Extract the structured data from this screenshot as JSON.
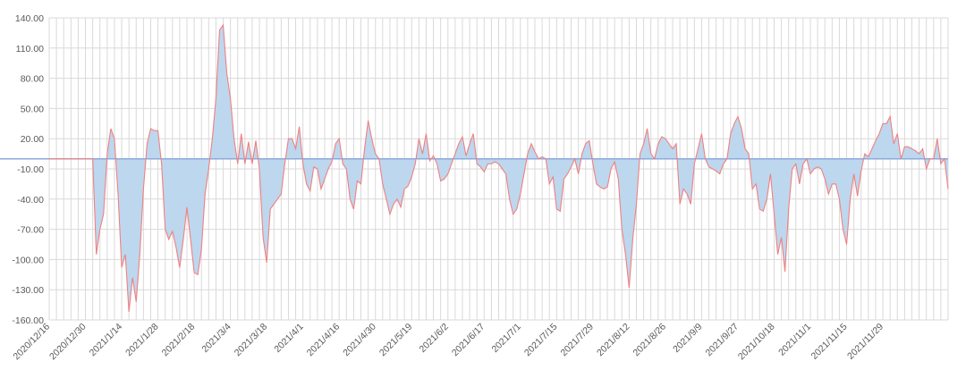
{
  "chart_data": {
    "type": "area",
    "title": "",
    "xlabel": "",
    "ylabel": "",
    "ylim": [
      -160,
      140
    ],
    "ytick_step": 30,
    "y_ticks": [
      "140.00",
      "110.00",
      "80.00",
      "50.00",
      "20.00",
      "-10.00",
      "-40.00",
      "-70.00",
      "-100.00",
      "-130.00",
      "-160.00"
    ],
    "baseline": 0,
    "x_labels": [
      "2020/12/16",
      "2020/12/30",
      "2021/1/14",
      "2021/1/28",
      "2021/2/18",
      "2021/3/4",
      "2021/3/18",
      "2021/4/1",
      "2021/4/16",
      "2021/4/30",
      "2021/5/19",
      "2021/6/2",
      "2021/6/17",
      "2021/7/1",
      "2021/7/15",
      "2021/7/29",
      "2021/8/12",
      "2021/8/26",
      "2021/9/9",
      "2021/9/27",
      "2021/10/18",
      "2021/11/1",
      "2021/11/15",
      "2021/11/29"
    ],
    "points_per_label": 10,
    "series": [
      {
        "name": "value",
        "colors": {
          "line": "#f08080",
          "fill": "#bdd7ee",
          "baseline": "#8ea9db"
        },
        "values": [
          0,
          0,
          0,
          0,
          0,
          0,
          0,
          0,
          0,
          0,
          0,
          0,
          0,
          -95,
          -70,
          -55,
          5,
          30,
          20,
          -35,
          -108,
          -95,
          -152,
          -118,
          -142,
          -95,
          -30,
          15,
          30,
          28,
          28,
          -5,
          -70,
          -80,
          -72,
          -88,
          -108,
          -80,
          -48,
          -80,
          -113,
          -115,
          -90,
          -35,
          -10,
          20,
          60,
          128,
          133,
          85,
          60,
          20,
          -5,
          25,
          -5,
          17,
          -5,
          18,
          -10,
          -78,
          -103,
          -50,
          -45,
          -40,
          -35,
          -5,
          20,
          20,
          10,
          32,
          -5,
          -25,
          -32,
          -8,
          -10,
          -30,
          -20,
          -10,
          -3,
          15,
          20,
          -5,
          -10,
          -40,
          -50,
          -22,
          -25,
          10,
          38,
          20,
          5,
          0,
          -25,
          -40,
          -55,
          -45,
          -40,
          -48,
          -30,
          -27,
          -18,
          -5,
          20,
          5,
          25,
          -2,
          3,
          -5,
          -22,
          -20,
          -15,
          -5,
          5,
          15,
          22,
          3,
          15,
          25,
          -5,
          -8,
          -13,
          -5,
          -5,
          -3,
          -5,
          -10,
          -15,
          -40,
          -55,
          -50,
          -35,
          -15,
          5,
          15,
          7,
          0,
          2,
          0,
          -25,
          -18,
          -50,
          -52,
          -20,
          -15,
          -8,
          0,
          -15,
          5,
          15,
          18,
          -5,
          -25,
          -28,
          -30,
          -28,
          -10,
          -3,
          -20,
          -70,
          -95,
          -128,
          -80,
          -45,
          5,
          15,
          30,
          5,
          0,
          15,
          22,
          20,
          15,
          10,
          15,
          -45,
          -30,
          -35,
          -45,
          -5,
          10,
          25,
          0,
          -8,
          -10,
          -12,
          -15,
          -5,
          0,
          25,
          35,
          42,
          30,
          10,
          5,
          -30,
          -25,
          -50,
          -52,
          -40,
          -15,
          -55,
          -95,
          -78,
          -112,
          -50,
          -10,
          -5,
          -25,
          -5,
          0,
          -15,
          -10,
          -8,
          -10,
          -20,
          -35,
          -25,
          -25,
          -40,
          -70,
          -85,
          -40,
          -15,
          -37,
          -12,
          5,
          2,
          10,
          18,
          25,
          35,
          35,
          42,
          15,
          25,
          0,
          12,
          12,
          10,
          8,
          5,
          10,
          -10,
          0,
          0,
          20,
          -5,
          0,
          -30
        ]
      }
    ]
  }
}
